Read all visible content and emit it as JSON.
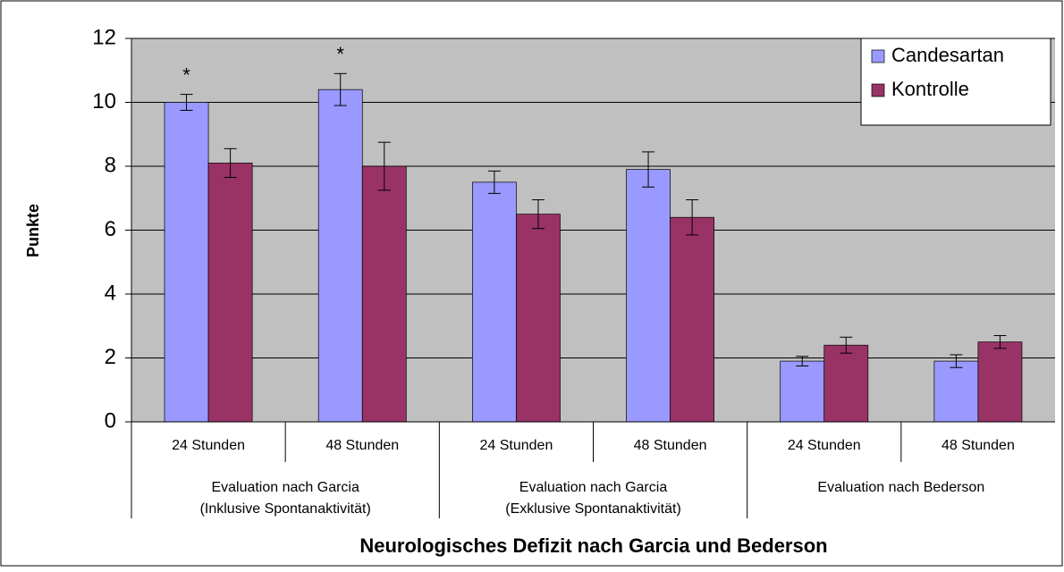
{
  "chart_data": {
    "type": "bar",
    "y_label": "Punkte",
    "x_label": "Neurologisches Defizit nach Garcia und Bederson",
    "categories": [
      "24 Stunden",
      "48 Stunden",
      "24 Stunden",
      "48 Stunden",
      "24 Stunden",
      "48 Stunden"
    ],
    "groups": [
      {
        "lines": [
          "Evaluation nach Garcia",
          "(Inklusive Spontanaktivität)"
        ],
        "span": 2
      },
      {
        "lines": [
          "Evaluation nach Garcia",
          "(Exklusive Spontanaktivität)"
        ],
        "span": 2
      },
      {
        "lines": [
          "Evaluation nach Bederson"
        ],
        "span": 2
      }
    ],
    "series": [
      {
        "name": "Candesartan",
        "color": "#9999ff",
        "values": [
          10.0,
          10.4,
          7.5,
          7.9,
          1.9,
          1.9
        ],
        "errors": [
          0.25,
          0.5,
          0.35,
          0.55,
          0.15,
          0.2
        ],
        "significance": [
          "*",
          "*",
          null,
          null,
          null,
          null
        ]
      },
      {
        "name": "Kontrolle",
        "color": "#993366",
        "values": [
          8.1,
          8.0,
          6.5,
          6.4,
          2.4,
          2.5
        ],
        "errors": [
          0.45,
          0.75,
          0.45,
          0.55,
          0.25,
          0.2
        ]
      }
    ],
    "ylim": [
      0,
      12
    ],
    "yticks": [
      0,
      2,
      4,
      6,
      8,
      10,
      12
    ],
    "grid": true,
    "plot_background": "#c0c0c0",
    "legend": "top-right"
  }
}
